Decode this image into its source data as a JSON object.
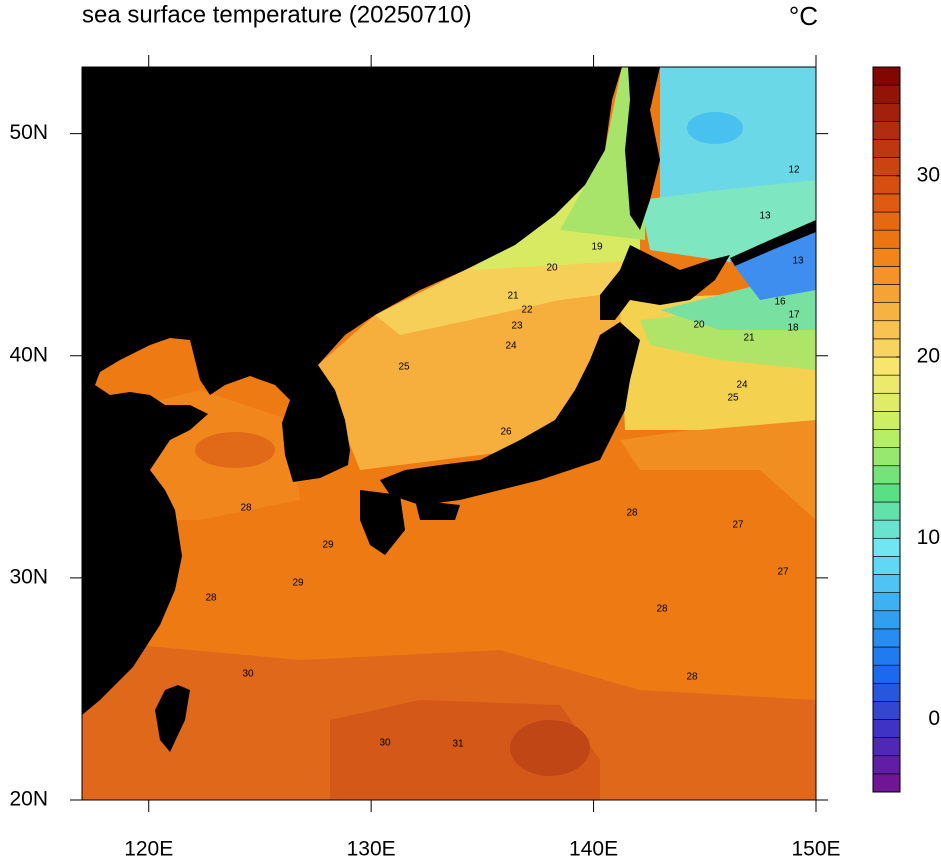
{
  "title": "sea surface temperature (20250710)",
  "unit": "°C",
  "map": {
    "xlim": [
      117,
      150
    ],
    "ylim": [
      20,
      53
    ],
    "xticks": [
      {
        "value": 120,
        "label": "120E"
      },
      {
        "value": 130,
        "label": "130E"
      },
      {
        "value": 140,
        "label": "140E"
      },
      {
        "value": 150,
        "label": "150E"
      }
    ],
    "yticks": [
      {
        "value": 20,
        "label": "20N"
      },
      {
        "value": 30,
        "label": "30N"
      },
      {
        "value": 40,
        "label": "40N"
      },
      {
        "value": 50,
        "label": "50N"
      }
    ],
    "contour_labels": [
      19,
      20,
      21,
      22,
      23,
      24,
      25,
      26,
      28,
      29,
      29,
      28,
      30,
      30,
      31,
      28,
      27,
      27,
      28,
      28,
      13,
      13,
      16,
      17,
      18,
      20,
      21,
      24,
      25,
      12
    ]
  },
  "colorbar": {
    "range": [
      -4,
      36
    ],
    "step": 1,
    "ticks": [
      0,
      10,
      20,
      30
    ],
    "colors": [
      "#7a1090",
      "#4030c0",
      "#1a6cf0",
      "#34a8f0",
      "#70e6f8",
      "#58e080",
      "#c8f060",
      "#f8e870",
      "#f6b040",
      "#f07c14",
      "#d85010",
      "#b02a10",
      "#7a0000"
    ]
  }
}
